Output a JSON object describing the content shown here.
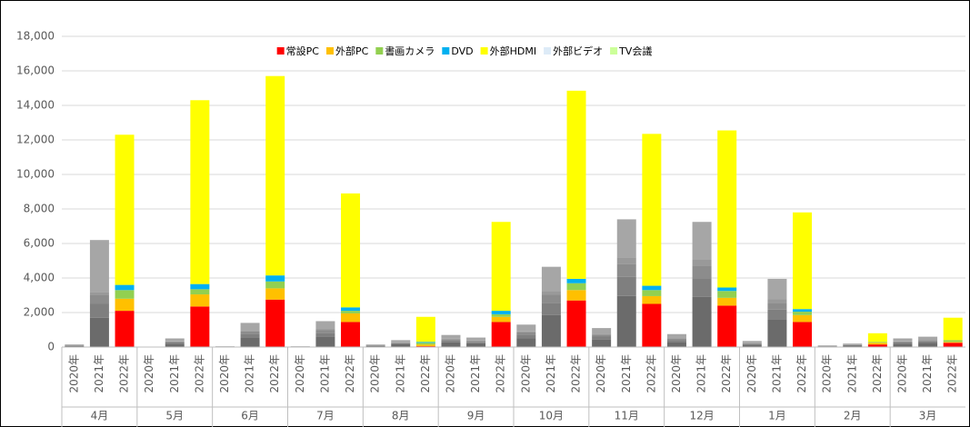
{
  "chart_data": {
    "type": "bar",
    "stacked": true,
    "groups": [
      "4月",
      "5月",
      "6月",
      "7月",
      "8月",
      "9月",
      "10月",
      "11月",
      "12月",
      "1月",
      "2月",
      "3月"
    ],
    "categories": [
      "2020年",
      "2021年",
      "2022年",
      "2020年",
      "2021年",
      "2022年",
      "2020年",
      "2021年",
      "2022年",
      "2020年",
      "2021年",
      "2022年",
      "2020年",
      "2021年",
      "2022年",
      "2020年",
      "2021年",
      "2022年",
      "2020年",
      "2021年",
      "2022年",
      "2020年",
      "2021年",
      "2022年",
      "2020年",
      "2021年",
      "2022年",
      "2020年",
      "2021年",
      "2022年",
      "2020年",
      "2021年",
      "2022年",
      "2020年",
      "2021年",
      "2022年"
    ],
    "series": [
      {
        "name": "常設PC",
        "color": "#ff0000",
        "past_color": "#6b6b6b",
        "values": [
          60,
          1700,
          2100,
          0,
          200,
          2350,
          20,
          560,
          2750,
          20,
          600,
          1450,
          60,
          160,
          50,
          280,
          220,
          1450,
          520,
          1860,
          2700,
          440,
          2960,
          2500,
          300,
          2900,
          2400,
          140,
          1580,
          1450,
          40,
          80,
          150,
          200,
          240,
          250
        ]
      },
      {
        "name": "外部PC",
        "color": "#ffc000",
        "past_color": "#7f7f7f",
        "values": [
          20,
          800,
          700,
          0,
          75,
          700,
          10,
          210,
          650,
          10,
          225,
          500,
          20,
          60,
          100,
          105,
          85,
          300,
          195,
          700,
          600,
          165,
          1110,
          450,
          115,
          1090,
          450,
          55,
          595,
          400,
          15,
          30,
          100,
          75,
          90,
          50
        ]
      },
      {
        "name": "書画カメラ",
        "color": "#92d050",
        "past_color": "#8c8c8c",
        "values": [
          20,
          500,
          500,
          0,
          50,
          300,
          5,
          140,
          400,
          5,
          150,
          150,
          20,
          40,
          100,
          70,
          55,
          150,
          130,
          465,
          400,
          110,
          740,
          350,
          75,
          725,
          400,
          35,
          395,
          200,
          10,
          20,
          50,
          50,
          60,
          100
        ]
      },
      {
        "name": "DVD",
        "color": "#00b0f0",
        "past_color": "#999999",
        "values": [
          0,
          200,
          300,
          0,
          25,
          300,
          0,
          70,
          350,
          0,
          75,
          200,
          10,
          20,
          50,
          35,
          25,
          200,
          65,
          230,
          250,
          55,
          370,
          250,
          35,
          360,
          200,
          15,
          195,
          150,
          5,
          10,
          0,
          25,
          30,
          0
        ]
      },
      {
        "name": "外部HDMI",
        "color": "#ffff00",
        "past_color": "#a6a6a6",
        "values": [
          50,
          3000,
          8700,
          0,
          150,
          10650,
          15,
          420,
          11550,
          15,
          450,
          6600,
          40,
          120,
          1450,
          210,
          165,
          5150,
          390,
          1395,
          10900,
          330,
          2220,
          8800,
          225,
          2175,
          9100,
          105,
          1185,
          5600,
          30,
          60,
          500,
          150,
          180,
          1300
        ]
      },
      {
        "name": "外部ビデオ",
        "color": "#ddebf7",
        "past_color": "#b0b0b0",
        "values": [
          0,
          0,
          0,
          0,
          0,
          0,
          0,
          0,
          0,
          0,
          0,
          0,
          0,
          0,
          0,
          0,
          0,
          0,
          0,
          0,
          0,
          0,
          0,
          0,
          0,
          0,
          0,
          0,
          0,
          0,
          0,
          0,
          0,
          0,
          0,
          0
        ]
      },
      {
        "name": "TV会議",
        "color": "#ccff99",
        "past_color": "#bbbbbb",
        "values": [
          0,
          0,
          0,
          0,
          0,
          0,
          0,
          0,
          0,
          0,
          0,
          0,
          0,
          0,
          0,
          0,
          0,
          0,
          0,
          0,
          0,
          0,
          0,
          0,
          0,
          0,
          0,
          0,
          0,
          0,
          0,
          0,
          0,
          0,
          0,
          0
        ]
      }
    ],
    "ylim": [
      0,
      18000
    ],
    "yticks": [
      0,
      {
        "value": 2000,
        "label": "2,000"
      },
      {
        "value": 4000,
        "label": "4,000"
      },
      {
        "value": 6000,
        "label": "6,000"
      },
      {
        "value": 8000,
        "label": "8,000"
      },
      {
        "value": 10000,
        "label": "10,000"
      },
      {
        "value": 12000,
        "label": "12,000"
      },
      {
        "value": 14000,
        "label": "14,000"
      },
      {
        "value": 16000,
        "label": "16,000"
      },
      {
        "value": 18000,
        "label": "18,000"
      }
    ],
    "grid": true,
    "legend": "top"
  }
}
